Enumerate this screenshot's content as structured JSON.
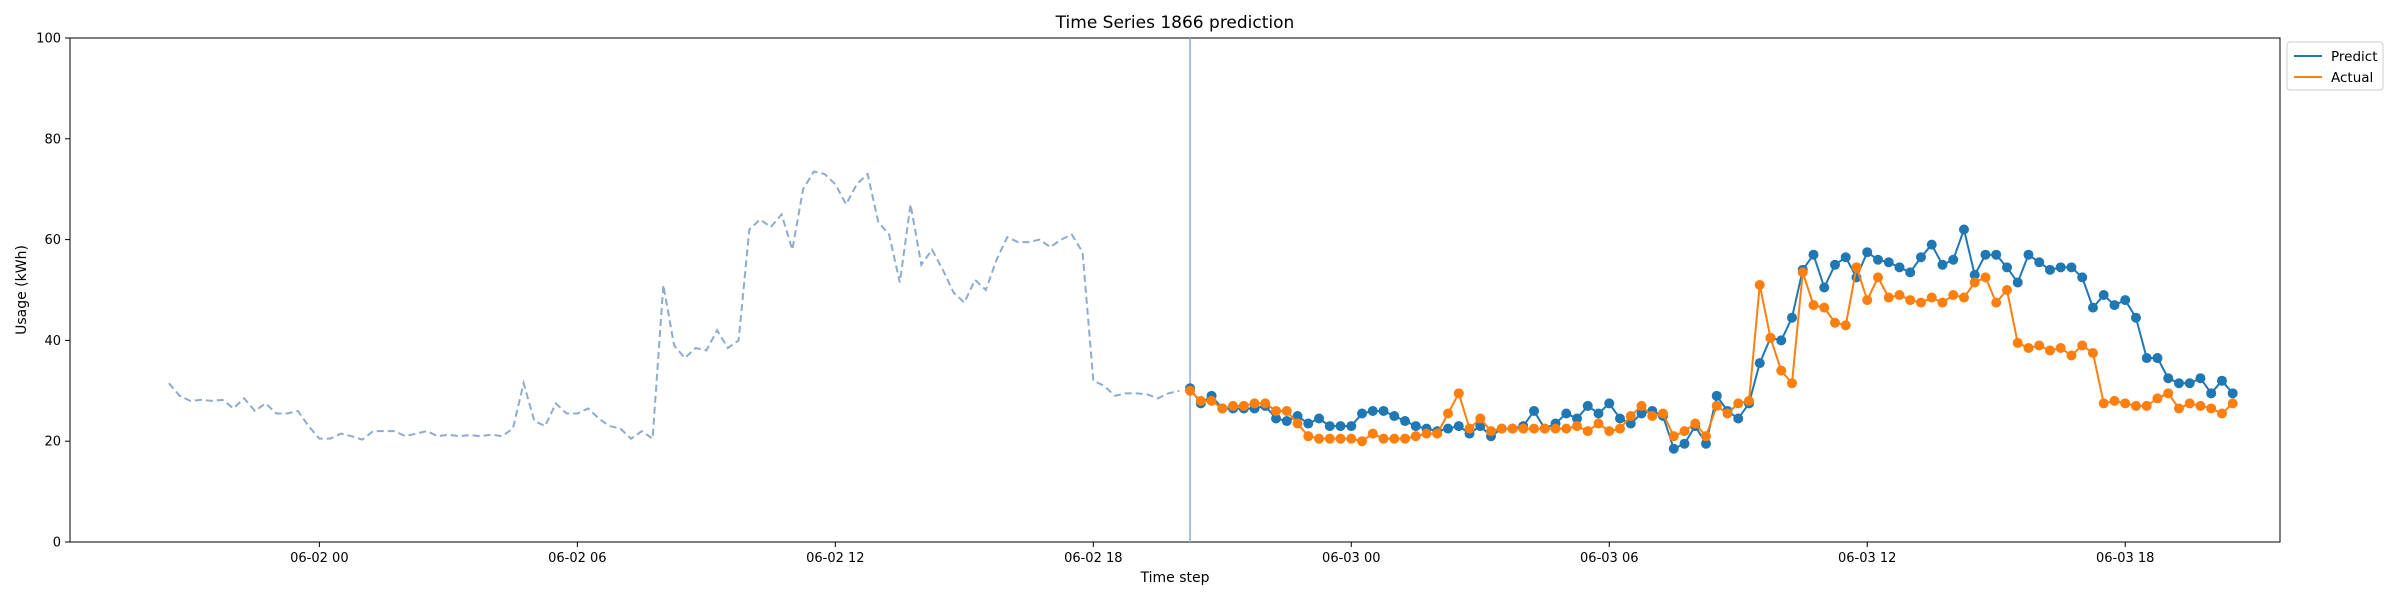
{
  "chart_data": {
    "type": "line",
    "title": "Time Series 1866 prediction",
    "xlabel": "Time step",
    "ylabel": "Usage (kWh)",
    "ylim": [
      0,
      100
    ],
    "yticks": [
      0,
      20,
      40,
      60,
      80,
      100
    ],
    "xticks": [
      {
        "t": 6,
        "label": "06-02 00"
      },
      {
        "t": 12,
        "label": "06-02 06"
      },
      {
        "t": 18,
        "label": "06-02 12"
      },
      {
        "t": 24,
        "label": "06-02 18"
      },
      {
        "t": 30,
        "label": "06-03 00"
      },
      {
        "t": 36,
        "label": "06-03 06"
      },
      {
        "t": 42,
        "label": "06-03 12"
      },
      {
        "t": 48,
        "label": "06-03 18"
      }
    ],
    "xlim": [
      0.2,
      51.6
    ],
    "legend_position": "upper-right-outside",
    "forecast_start": 26.25,
    "colors": {
      "predict": "#1f77b4",
      "actual": "#ff7f0e",
      "history": "#8eabd0"
    },
    "history": {
      "t_start": 2.5,
      "step": 0.25,
      "values": [
        31.5,
        29,
        28,
        28.2,
        28,
        28.2,
        26.5,
        28.5,
        26,
        27.5,
        25.5,
        25.5,
        26,
        23,
        20.5,
        20.5,
        21.5,
        21,
        20.3,
        22,
        22,
        22,
        21,
        21.5,
        22,
        21,
        21.3,
        21,
        21.2,
        21,
        21.3,
        21,
        22.5,
        31.5,
        24,
        23,
        27.5,
        25.5,
        25.5,
        26.5,
        24.5,
        23,
        22.5,
        20.5,
        22,
        20.5,
        51,
        39,
        36.5,
        38.5,
        38,
        42,
        38.5,
        40,
        62,
        64,
        62.5,
        65,
        58,
        70,
        73.5,
        73,
        71,
        67,
        71,
        73,
        63.5,
        61,
        51.5,
        67,
        55,
        58,
        54,
        49.5,
        47.5,
        52,
        50,
        56,
        60.5,
        59.5,
        59.5,
        60,
        58.5,
        60,
        61,
        57.5,
        32,
        31,
        29,
        29.5,
        29.5,
        29.3,
        28.5,
        29.5,
        30
      ]
    },
    "series": [
      {
        "name": "Predict",
        "t_start": 26.25,
        "step": 0.25,
        "values": [
          30.5,
          27.5,
          29,
          26.5,
          26.5,
          26.5,
          26.5,
          27,
          24.5,
          24,
          25,
          23.5,
          24.5,
          23,
          23,
          23,
          25.5,
          26,
          26,
          25,
          24,
          23,
          22.5,
          22,
          22.5,
          23,
          21.5,
          23,
          21,
          22.5,
          22.5,
          23,
          26,
          22.5,
          23.5,
          25.5,
          24.5,
          27,
          25.5,
          27.5,
          24.5,
          23.5,
          25.5,
          26,
          25,
          18.5,
          19.5,
          23,
          19.5,
          29,
          26,
          24.5,
          27.5,
          35.5,
          40.5,
          40,
          44.5,
          54,
          57,
          50.5,
          55,
          56.5,
          52.5,
          57.5,
          56,
          55.5,
          54.5,
          53.5,
          56.5,
          59,
          55,
          56,
          62,
          53,
          57,
          57,
          54.5,
          51.5,
          57,
          55.5,
          54,
          54.5,
          54.5,
          52.5,
          46.5,
          49,
          47,
          48,
          44.5,
          36.5,
          36.5,
          32.5,
          31.5,
          31.5,
          32.5,
          29.5,
          32,
          29.5
        ]
      },
      {
        "name": "Actual",
        "t_start": 26.25,
        "step": 0.25,
        "values": [
          30,
          28,
          28,
          26.5,
          27,
          27,
          27.5,
          27.5,
          26,
          26,
          23.5,
          21,
          20.5,
          20.5,
          20.5,
          20.5,
          20,
          21.5,
          20.5,
          20.5,
          20.5,
          21,
          21.5,
          21.5,
          25.5,
          29.5,
          22.5,
          24.5,
          22,
          22.5,
          22.5,
          22.5,
          22.5,
          22.5,
          22.5,
          22.5,
          23,
          22,
          23.5,
          22,
          22.5,
          25,
          27,
          25,
          25.5,
          21,
          22,
          23.5,
          21,
          27,
          25.5,
          27.5,
          28,
          51,
          40.5,
          34,
          31.5,
          53.5,
          47,
          46.5,
          43.5,
          43,
          54.5,
          48,
          52.5,
          48.5,
          49,
          48,
          47.5,
          48.5,
          47.5,
          49,
          48.5,
          51.5,
          52.5,
          47.5,
          50,
          39.5,
          38.5,
          39,
          38,
          38.5,
          37,
          39,
          37.5,
          27.5,
          28,
          27.5,
          27,
          27,
          28.5,
          29.5,
          26.5,
          27.5,
          27,
          26.5,
          25.5,
          27.5
        ]
      }
    ]
  }
}
